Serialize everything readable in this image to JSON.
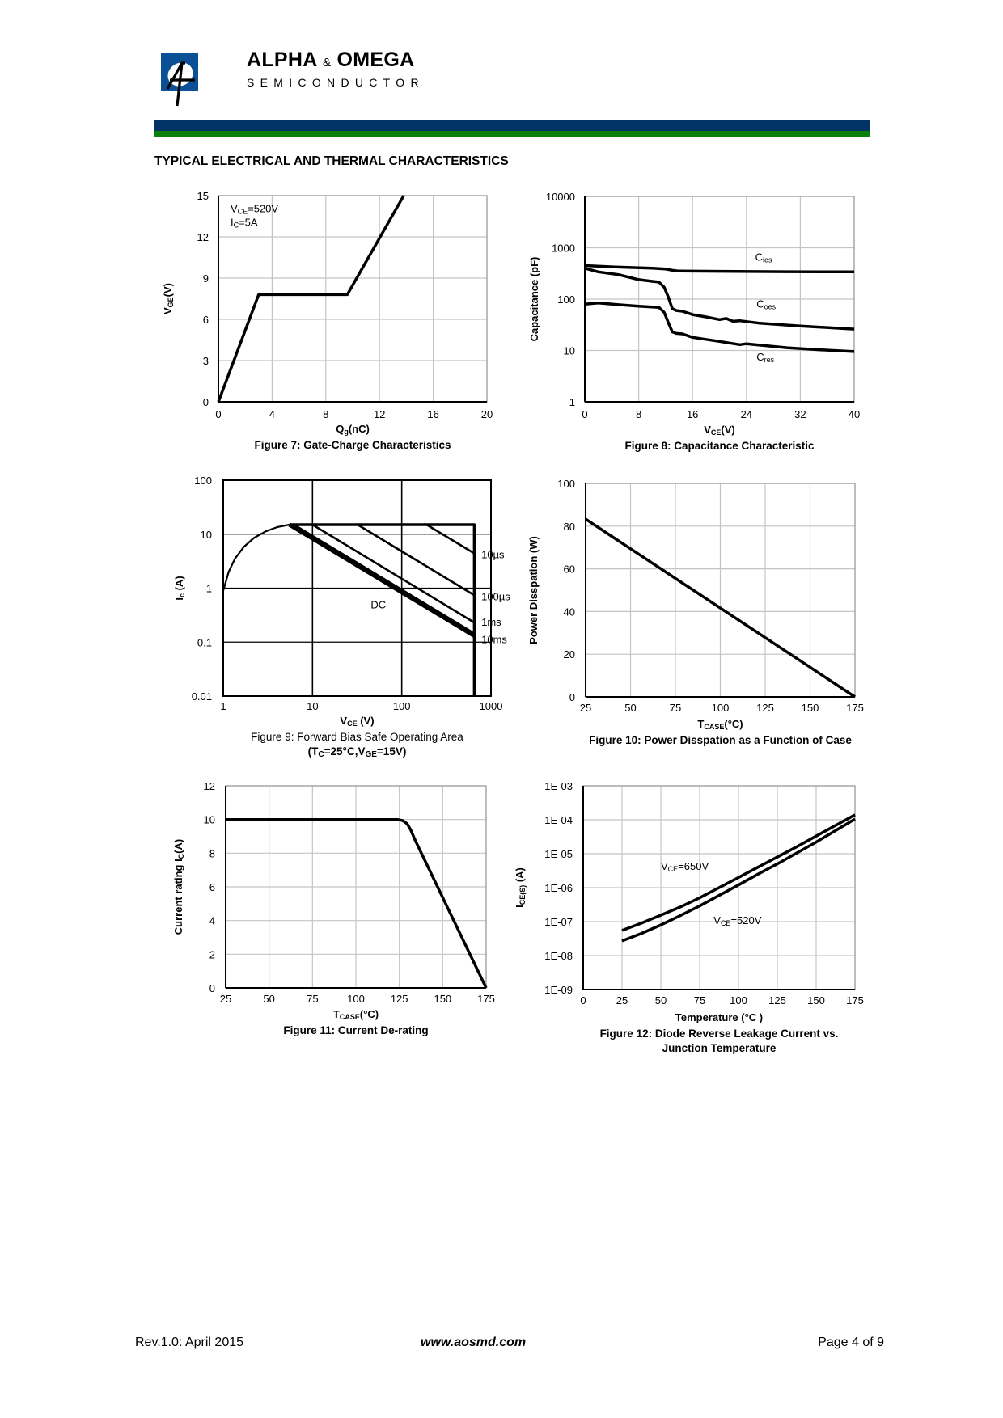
{
  "header": {
    "brand_name_1": "ALPHA",
    "brand_amp": "&",
    "brand_name_2": "OMEGA",
    "brand_sub": "SEMICONDUCTOR",
    "colors": {
      "navy": "#003366",
      "green": "#0a7f0a",
      "logo_blue": "#0b4f96"
    }
  },
  "section_title": "TYPICAL ELECTRICAL AND THERMAL CHARACTERISTICS",
  "footer": {
    "rev": "Rev.1.0: April 2015",
    "url": "www.aosmd.com",
    "page": "Page 4 of 9"
  },
  "chart_data": [
    {
      "type": "line",
      "title": "Figure 7: Gate-Charge Characteristics",
      "xlabel": [
        {
          "t": "Q"
        },
        {
          "t": "g",
          "sub": true
        },
        {
          "t": "(nC)"
        }
      ],
      "ylabel": [
        {
          "t": "V"
        },
        {
          "t": "GE",
          "sub": true
        },
        {
          "t": "(V)"
        }
      ],
      "xscale": "linear",
      "xlim": [
        0,
        20
      ],
      "xticks": [
        0,
        4,
        8,
        12,
        16,
        20
      ],
      "xtick_labels": [
        "0",
        "4",
        "8",
        "12",
        "16",
        "20"
      ],
      "yscale": "linear",
      "ylim": [
        0,
        15
      ],
      "yticks": [
        0,
        3,
        6,
        9,
        12,
        15
      ],
      "ytick_labels": [
        "0",
        "3",
        "6",
        "9",
        "12",
        "15"
      ],
      "grid": true,
      "series": [
        {
          "name": "VGE",
          "points": [
            [
              0,
              0
            ],
            [
              3,
              7.8
            ],
            [
              9.6,
              7.8
            ],
            [
              13.8,
              15
            ]
          ]
        }
      ],
      "annotations": [
        {
          "parts": [
            {
              "t": "V"
            },
            {
              "t": "CE",
              "sub": true
            },
            {
              "t": "=520V"
            }
          ],
          "x": 0.9,
          "y": 13.8
        },
        {
          "parts": [
            {
              "t": "I"
            },
            {
              "t": "C",
              "sub": true
            },
            {
              "t": "=5A"
            }
          ],
          "x": 0.9,
          "y": 12.8
        }
      ]
    },
    {
      "type": "line",
      "title": "Figure 8: Capacitance Characteristic",
      "xlabel": [
        {
          "t": "V"
        },
        {
          "t": "CE",
          "sub": true
        },
        {
          "t": "(V)"
        }
      ],
      "ylabel": [
        {
          "t": "Capacitance (pF)"
        }
      ],
      "xscale": "linear",
      "xlim": [
        0,
        40
      ],
      "xticks": [
        0,
        8,
        16,
        24,
        32,
        40
      ],
      "xtick_labels": [
        "0",
        "8",
        "16",
        "24",
        "32",
        "40"
      ],
      "yscale": "log",
      "ylim": [
        1,
        10000
      ],
      "yticks": [
        1,
        10,
        100,
        1000,
        10000
      ],
      "ytick_labels": [
        "1",
        "10",
        "100",
        "1000",
        "10000"
      ],
      "grid": true,
      "series": [
        {
          "name": "Cies",
          "points": [
            [
              0,
              450
            ],
            [
              5,
              420
            ],
            [
              10,
              400
            ],
            [
              12,
              385
            ],
            [
              13,
              365
            ],
            [
              14,
              352
            ],
            [
              20,
              348
            ],
            [
              30,
              342
            ],
            [
              40,
              340
            ]
          ]
        },
        {
          "name": "Coes",
          "points": [
            [
              0,
              400
            ],
            [
              2,
              340
            ],
            [
              5,
              300
            ],
            [
              8,
              240
            ],
            [
              10,
              222
            ],
            [
              11,
              215
            ],
            [
              11.8,
              170
            ],
            [
              12.4,
              110
            ],
            [
              13,
              65
            ],
            [
              13.6,
              60
            ],
            [
              14.5,
              58
            ],
            [
              16,
              50
            ],
            [
              18,
              45
            ],
            [
              20,
              40
            ],
            [
              21,
              42
            ],
            [
              22,
              37
            ],
            [
              23,
              38
            ],
            [
              26,
              34
            ],
            [
              32,
              30
            ],
            [
              40,
              26
            ]
          ]
        },
        {
          "name": "Cres",
          "points": [
            [
              0,
              80
            ],
            [
              2,
              84
            ],
            [
              5,
              78
            ],
            [
              8,
              73
            ],
            [
              10,
              70
            ],
            [
              11,
              69
            ],
            [
              11.8,
              55
            ],
            [
              12.4,
              35
            ],
            [
              13,
              23
            ],
            [
              13.6,
              21.5
            ],
            [
              14.5,
              21
            ],
            [
              16,
              18
            ],
            [
              20,
              15
            ],
            [
              23,
              13
            ],
            [
              24,
              13.5
            ],
            [
              30,
              11.3
            ],
            [
              35,
              10.3
            ],
            [
              40,
              9.5
            ]
          ]
        }
      ],
      "annotations": [
        {
          "parts": [
            {
              "t": "C"
            },
            {
              "t": "ies",
              "sub": true
            }
          ],
          "x": 25.3,
          "y": 560
        },
        {
          "parts": [
            {
              "t": "C"
            },
            {
              "t": "oes",
              "sub": true
            }
          ],
          "x": 25.5,
          "y": 68
        },
        {
          "parts": [
            {
              "t": "C"
            },
            {
              "t": "res",
              "sub": true
            }
          ],
          "x": 25.5,
          "y": 6.3
        }
      ]
    },
    {
      "type": "line",
      "title": "Figure 9: Forward Bias Safe Operating Area",
      "subtitle": [
        {
          "t": "(T"
        },
        {
          "t": "C",
          "sub": true
        },
        {
          "t": "=25°C,V"
        },
        {
          "t": "GE",
          "sub": true
        },
        {
          "t": "=15V)"
        }
      ],
      "xlabel": [
        {
          "t": "V"
        },
        {
          "t": "CE",
          "sub": true
        },
        {
          "t": " (V)"
        }
      ],
      "ylabel": [
        {
          "t": "I"
        },
        {
          "t": "c",
          "sub": true
        },
        {
          "t": " (A)"
        }
      ],
      "xscale": "log",
      "xlim": [
        1,
        1000
      ],
      "xticks": [
        1,
        10,
        100,
        1000
      ],
      "xtick_labels": [
        "1",
        "10",
        "100",
        "1000"
      ],
      "yscale": "log",
      "ylim": [
        0.01,
        100
      ],
      "yticks": [
        0.01,
        0.1,
        1,
        10,
        100
      ],
      "ytick_labels": [
        "0.01",
        "0.1",
        "1",
        "10",
        "100"
      ],
      "grid": true,
      "series": [
        {
          "name": "limit-curve",
          "points": [
            [
              1,
              0.9
            ],
            [
              1.15,
              2
            ],
            [
              1.35,
              3.5
            ],
            [
              1.7,
              5.8
            ],
            [
              2.2,
              8.5
            ],
            [
              3,
              11.3
            ],
            [
              4,
              13.5
            ],
            [
              5.5,
              15
            ]
          ]
        },
        {
          "name": "current-limit",
          "points": [
            [
              5.5,
              15
            ],
            [
              650,
              15
            ],
            [
              650,
              0.01
            ]
          ]
        },
        {
          "name": "10µs",
          "points": [
            [
              190,
              15
            ],
            [
              650,
              4.4
            ]
          ]
        },
        {
          "name": "100µs",
          "points": [
            [
              32,
              15
            ],
            [
              650,
              0.74
            ]
          ]
        },
        {
          "name": "1ms",
          "points": [
            [
              10,
              15
            ],
            [
              650,
              0.23
            ]
          ]
        },
        {
          "name": "10ms",
          "points": [
            [
              6.2,
              15
            ],
            [
              650,
              0.145
            ]
          ]
        },
        {
          "name": "DC",
          "points": [
            [
              5.5,
              15
            ],
            [
              650,
              0.13
            ]
          ]
        }
      ],
      "annotations": [
        {
          "parts": [
            {
              "t": "DC"
            }
          ],
          "x": 45,
          "y": 0.42
        },
        {
          "parts": [
            {
              "t": "10µs"
            }
          ],
          "x": 780,
          "y": 3.6
        },
        {
          "parts": [
            {
              "t": "100µs"
            }
          ],
          "x": 780,
          "y": 0.6
        },
        {
          "parts": [
            {
              "t": "1ms"
            }
          ],
          "x": 780,
          "y": 0.2
        },
        {
          "parts": [
            {
              "t": "10ms"
            }
          ],
          "x": 780,
          "y": 0.095
        }
      ]
    },
    {
      "type": "line",
      "title": "Figure 10: Power Disspation as a Function of Case",
      "xlabel": [
        {
          "t": "T"
        },
        {
          "t": "CASE",
          "sub": true
        },
        {
          "t": "(°C)"
        }
      ],
      "ylabel": [
        {
          "t": "Power Disspation (W)"
        }
      ],
      "xscale": "linear",
      "xlim": [
        25,
        175
      ],
      "xticks": [
        25,
        50,
        75,
        100,
        125,
        150,
        175
      ],
      "xtick_labels": [
        "25",
        "50",
        "75",
        "100",
        "125",
        "150",
        "175"
      ],
      "yscale": "linear",
      "ylim": [
        0,
        100
      ],
      "yticks": [
        0,
        20,
        40,
        60,
        80,
        100
      ],
      "ytick_labels": [
        "0",
        "20",
        "40",
        "60",
        "80",
        "100"
      ],
      "grid": true,
      "series": [
        {
          "name": "Pd",
          "points": [
            [
              25,
              83.3
            ],
            [
              175,
              0
            ]
          ]
        }
      ],
      "annotations": []
    },
    {
      "type": "line",
      "title": "Figure 11: Current De-rating",
      "xlabel": [
        {
          "t": "T"
        },
        {
          "t": "CASE",
          "sub": true
        },
        {
          "t": "(°C)"
        }
      ],
      "ylabel": [
        {
          "t": "Current rating I"
        },
        {
          "t": "C",
          "sub": true
        },
        {
          "t": "(A)"
        }
      ],
      "xscale": "linear",
      "xlim": [
        25,
        175
      ],
      "xticks": [
        25,
        50,
        75,
        100,
        125,
        150,
        175
      ],
      "xtick_labels": [
        "25",
        "50",
        "75",
        "100",
        "125",
        "150",
        "175"
      ],
      "yscale": "linear",
      "ylim": [
        0,
        12
      ],
      "yticks": [
        0,
        2,
        4,
        6,
        8,
        10,
        12
      ],
      "ytick_labels": [
        "0",
        "2",
        "4",
        "6",
        "8",
        "10",
        "12"
      ],
      "grid": true,
      "series": [
        {
          "name": "Ic",
          "points": [
            [
              25,
              10
            ],
            [
              124,
              10
            ],
            [
              127,
              9.93
            ],
            [
              129.5,
              9.75
            ],
            [
              131.5,
              9.4
            ],
            [
              134,
              8.8
            ],
            [
              175,
              0
            ]
          ]
        }
      ],
      "annotations": []
    },
    {
      "type": "line",
      "title": "Figure 12: Diode Reverse Leakage Current vs.",
      "title2": "Junction Temperature",
      "xlabel": [
        {
          "t": "Temperature (°C )"
        }
      ],
      "ylabel": [
        {
          "t": "I"
        },
        {
          "t": "CE(S)",
          "sub": true
        },
        {
          "t": " (A)"
        }
      ],
      "xscale": "linear",
      "xlim": [
        0,
        175
      ],
      "xticks": [
        0,
        25,
        50,
        75,
        100,
        125,
        150,
        175
      ],
      "xtick_labels": [
        "0",
        "25",
        "50",
        "75",
        "100",
        "125",
        "150",
        "175"
      ],
      "yscale": "log",
      "ylim": [
        1e-09,
        0.001
      ],
      "yticks": [
        1e-09,
        1e-08,
        1e-07,
        1e-06,
        1e-05,
        0.0001,
        0.001
      ],
      "ytick_labels": [
        "1E-09",
        "1E-08",
        "1E-07",
        "1E-06",
        "1E-05",
        "1E-04",
        "1E-03"
      ],
      "grid": true,
      "series": [
        {
          "name": "VCE=650V",
          "points": [
            [
              25,
              5.5e-08
            ],
            [
              37.5,
              9e-08
            ],
            [
              50,
              1.55e-07
            ],
            [
              62.5,
              2.7e-07
            ],
            [
              75,
              5e-07
            ],
            [
              87.5,
              1e-06
            ],
            [
              100,
              2e-06
            ],
            [
              112.5,
              4e-06
            ],
            [
              125,
              8e-06
            ],
            [
              137.5,
              1.6e-05
            ],
            [
              150,
              3.3e-05
            ],
            [
              162.5,
              6.8e-05
            ],
            [
              175,
              0.00014
            ]
          ]
        },
        {
          "name": "VCE=520V",
          "points": [
            [
              25,
              2.7e-08
            ],
            [
              37.5,
              4.5e-08
            ],
            [
              50,
              8e-08
            ],
            [
              62.5,
              1.5e-07
            ],
            [
              75,
              2.9e-07
            ],
            [
              87.5,
              5.9e-07
            ],
            [
              100,
              1.2e-06
            ],
            [
              112.5,
              2.5e-06
            ],
            [
              125,
              5e-06
            ],
            [
              137.5,
              1.05e-05
            ],
            [
              150,
              2.2e-05
            ],
            [
              162.5,
              4.8e-05
            ],
            [
              175,
              0.000105
            ]
          ]
        }
      ],
      "annotations": [
        {
          "parts": [
            {
              "t": "V"
            },
            {
              "t": "CE",
              "sub": true
            },
            {
              "t": "=650V"
            }
          ],
          "x": 50,
          "y": 3.3e-06
        },
        {
          "parts": [
            {
              "t": "V"
            },
            {
              "t": "CE",
              "sub": true
            },
            {
              "t": "=520V"
            }
          ],
          "x": 84,
          "y": 8.5e-08
        }
      ]
    }
  ]
}
